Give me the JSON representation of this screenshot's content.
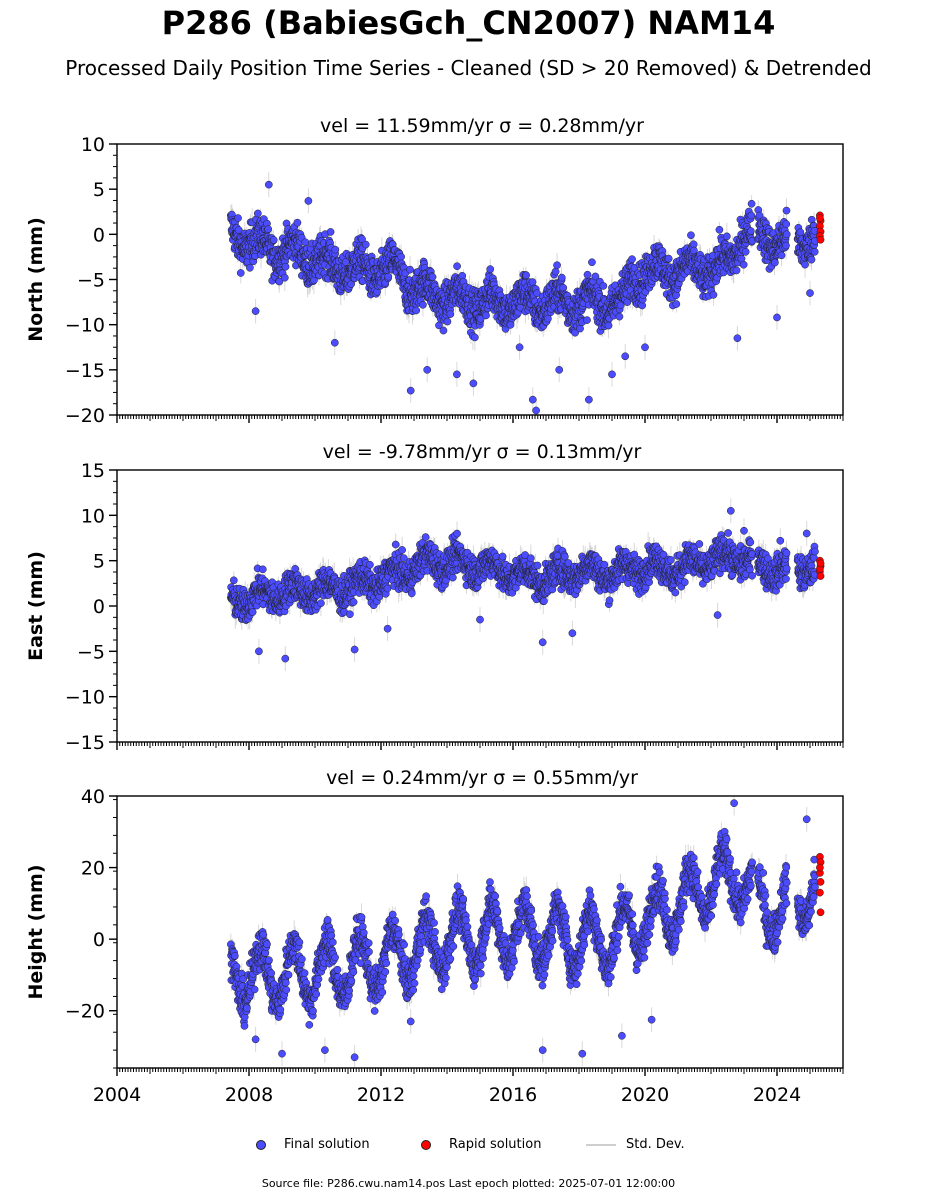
{
  "figure": {
    "title": "P286 (BabiesGch_CN2007) NAM14",
    "subtitle": "Processed Daily Position Time Series - Cleaned (SD > 20 Removed) & Detrended",
    "source_note": "Source file: P286.cwu.nam14.pos  Last epoch plotted: 2025-07-01 12:00:00"
  },
  "legend": {
    "final_label": "Final solution",
    "rapid_label": "Rapid solution",
    "std_label": "Std. Dev."
  },
  "colors": {
    "final": "#4b4bff",
    "rapid": "#ff0000",
    "std": "#c8c8c8",
    "edge": "#222222"
  },
  "chart_data": [
    {
      "type": "scatter",
      "title": "vel = 11.59mm/yr   σ = 0.28mm/yr",
      "ylabel": "North (mm)",
      "xlim": [
        2004,
        2026
      ],
      "ylim": [
        -20,
        10
      ],
      "yticks": [
        10,
        5,
        0,
        -5,
        -10,
        -15,
        -20
      ],
      "xticks": [
        2004,
        2008,
        2012,
        2016,
        2020,
        2024
      ],
      "show_xtick_labels": false,
      "trend": [
        [
          2007.5,
          0
        ],
        [
          2008.5,
          -1.5
        ],
        [
          2009.5,
          -2
        ],
        [
          2010.5,
          -3.5
        ],
        [
          2011.5,
          -4
        ],
        [
          2012.5,
          -4
        ],
        [
          2013,
          -6
        ],
        [
          2014,
          -7
        ],
        [
          2015,
          -7.5
        ],
        [
          2016,
          -7.5
        ],
        [
          2017,
          -7.5
        ],
        [
          2018,
          -7.5
        ],
        [
          2019.4,
          -7.5
        ],
        [
          2019.6,
          -4.5
        ],
        [
          2020.5,
          -4
        ],
        [
          2021.5,
          -4
        ],
        [
          2022.5,
          -3.5
        ],
        [
          2023,
          0.5
        ],
        [
          2023.5,
          0
        ],
        [
          2024.2,
          -1
        ],
        [
          2025.3,
          0
        ]
      ],
      "seasonal_amp": 1.2,
      "spread": 1.6,
      "outliers": [
        [
          2008.2,
          -8.5
        ],
        [
          2008.6,
          5.5
        ],
        [
          2009.8,
          3.7
        ],
        [
          2010.6,
          -12
        ],
        [
          2012.9,
          -17.3
        ],
        [
          2013.4,
          -15
        ],
        [
          2014.3,
          -15.5
        ],
        [
          2014.8,
          -16.5
        ],
        [
          2016.2,
          -12.5
        ],
        [
          2016.6,
          -18.3
        ],
        [
          2016.7,
          -19.5
        ],
        [
          2017.4,
          -15
        ],
        [
          2018.3,
          -18.3
        ],
        [
          2019.0,
          -15.5
        ],
        [
          2019.4,
          -13.5
        ],
        [
          2020.0,
          -12.5
        ],
        [
          2022.8,
          -11.5
        ],
        [
          2024.0,
          -9.2
        ],
        [
          2025.0,
          -6.5
        ]
      ],
      "rapid": [
        2.1,
        1.5,
        0.9,
        0.3,
        -0.2,
        -0.6,
        1.8
      ]
    },
    {
      "type": "scatter",
      "title": "vel = -9.78mm/yr   σ = 0.13mm/yr",
      "ylabel": "East (mm)",
      "xlim": [
        2004,
        2026
      ],
      "ylim": [
        -15,
        15
      ],
      "yticks": [
        15,
        10,
        5,
        0,
        -5,
        -10,
        -15
      ],
      "xticks": [
        2004,
        2008,
        2012,
        2016,
        2020,
        2024
      ],
      "show_xtick_labels": false,
      "trend": [
        [
          2007.5,
          0.5
        ],
        [
          2009,
          1.5
        ],
        [
          2011,
          2
        ],
        [
          2012.5,
          3.5
        ],
        [
          2013.5,
          5
        ],
        [
          2015,
          4.5
        ],
        [
          2016,
          3.5
        ],
        [
          2017,
          3
        ],
        [
          2018,
          4
        ],
        [
          2019,
          3.5
        ],
        [
          2020,
          4.5
        ],
        [
          2021,
          4
        ],
        [
          2022,
          5
        ],
        [
          2022.8,
          5.5
        ],
        [
          2023.5,
          4.5
        ],
        [
          2024.2,
          4
        ],
        [
          2025.3,
          4.5
        ]
      ],
      "seasonal_amp": 0.9,
      "spread": 1.3,
      "outliers": [
        [
          2008.3,
          -5
        ],
        [
          2009.1,
          -5.8
        ],
        [
          2011.2,
          -4.8
        ],
        [
          2012.2,
          -2.5
        ],
        [
          2015.0,
          -1.5
        ],
        [
          2016.9,
          -4
        ],
        [
          2017.8,
          -3
        ],
        [
          2022.6,
          10.5
        ],
        [
          2022.2,
          -1
        ],
        [
          2023.0,
          8.3
        ],
        [
          2024.1,
          7.2
        ],
        [
          2024.9,
          8
        ]
      ],
      "rapid": [
        5.0,
        4.4,
        3.8,
        3.3,
        4.1,
        4.7
      ]
    },
    {
      "type": "scatter",
      "title": "vel = 0.24mm/yr   σ = 0.55mm/yr",
      "ylabel": "Height (mm)",
      "xlim": [
        2004,
        2026
      ],
      "ylim": [
        -36,
        40
      ],
      "yticks": [
        40,
        20,
        0,
        -20
      ],
      "xticks": [
        2004,
        2008,
        2012,
        2016,
        2020,
        2024
      ],
      "show_xtick_labels": true,
      "trend": [
        [
          2007.5,
          -10
        ],
        [
          2009,
          -10
        ],
        [
          2011,
          -8
        ],
        [
          2012.5,
          -5
        ],
        [
          2014,
          0
        ],
        [
          2016,
          2
        ],
        [
          2018,
          0
        ],
        [
          2019,
          0
        ],
        [
          2020,
          5
        ],
        [
          2021,
          10
        ],
        [
          2022,
          15
        ],
        [
          2022.8,
          18
        ],
        [
          2023.5,
          10
        ],
        [
          2024.2,
          8
        ],
        [
          2025.3,
          16
        ]
      ],
      "seasonal_amp": 8,
      "spread": 4,
      "outliers": [
        [
          2008.2,
          -28
        ],
        [
          2009.0,
          -32
        ],
        [
          2010.3,
          -31
        ],
        [
          2011.2,
          -33
        ],
        [
          2012.9,
          -23
        ],
        [
          2016.9,
          -31
        ],
        [
          2018.1,
          -32
        ],
        [
          2019.3,
          -27
        ],
        [
          2020.2,
          -22.5
        ],
        [
          2022.7,
          38
        ],
        [
          2024.9,
          33.5
        ]
      ],
      "rapid": [
        23,
        21.5,
        18.5,
        16,
        13,
        7.5,
        20
      ]
    }
  ]
}
